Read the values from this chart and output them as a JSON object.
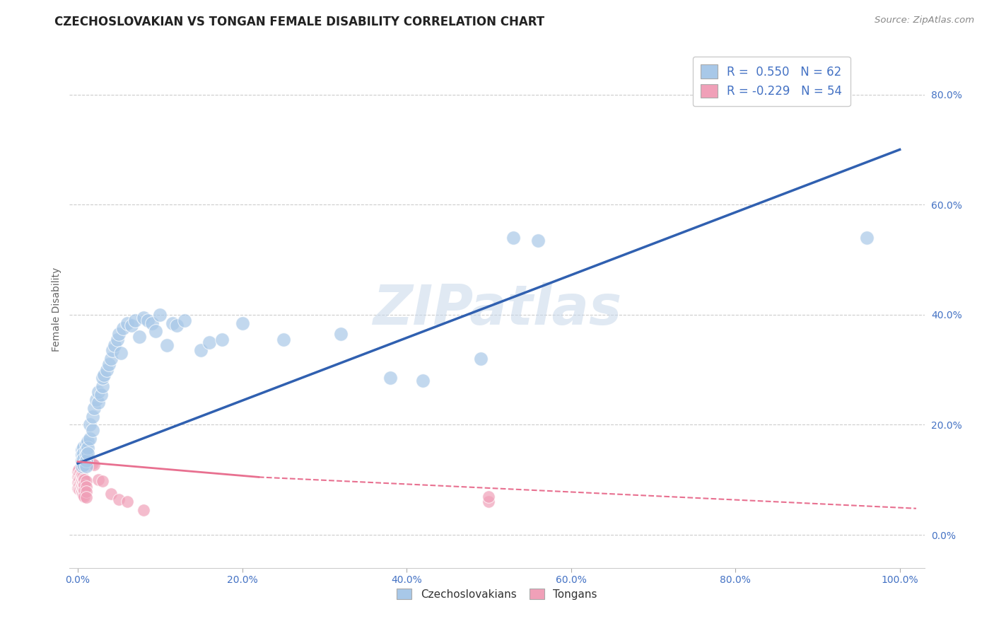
{
  "title": "CZECHOSLOVAKIAN VS TONGAN FEMALE DISABILITY CORRELATION CHART",
  "source": "Source: ZipAtlas.com",
  "ylabel": "Female Disability",
  "xlim": [
    0.0,
    1.0
  ],
  "ylim": [
    -0.05,
    0.88
  ],
  "r_czech": 0.55,
  "n_czech": 62,
  "r_tongan": -0.229,
  "n_tongan": 54,
  "czech_color": "#a8c8e8",
  "tongan_color": "#f0a0b8",
  "czech_line_color": "#3060b0",
  "tongan_line_color": "#e87090",
  "background_color": "#ffffff",
  "czech_scatter": [
    [
      0.005,
      0.155
    ],
    [
      0.005,
      0.145
    ],
    [
      0.005,
      0.135
    ],
    [
      0.005,
      0.125
    ],
    [
      0.007,
      0.16
    ],
    [
      0.007,
      0.148
    ],
    [
      0.007,
      0.138
    ],
    [
      0.007,
      0.128
    ],
    [
      0.01,
      0.165
    ],
    [
      0.01,
      0.155
    ],
    [
      0.01,
      0.145
    ],
    [
      0.01,
      0.135
    ],
    [
      0.01,
      0.125
    ],
    [
      0.012,
      0.17
    ],
    [
      0.012,
      0.158
    ],
    [
      0.012,
      0.148
    ],
    [
      0.015,
      0.175
    ],
    [
      0.015,
      0.2
    ],
    [
      0.018,
      0.19
    ],
    [
      0.018,
      0.215
    ],
    [
      0.02,
      0.23
    ],
    [
      0.022,
      0.245
    ],
    [
      0.025,
      0.24
    ],
    [
      0.025,
      0.26
    ],
    [
      0.028,
      0.255
    ],
    [
      0.03,
      0.27
    ],
    [
      0.03,
      0.285
    ],
    [
      0.032,
      0.29
    ],
    [
      0.035,
      0.3
    ],
    [
      0.038,
      0.31
    ],
    [
      0.04,
      0.32
    ],
    [
      0.042,
      0.335
    ],
    [
      0.045,
      0.345
    ],
    [
      0.048,
      0.355
    ],
    [
      0.05,
      0.365
    ],
    [
      0.052,
      0.33
    ],
    [
      0.055,
      0.375
    ],
    [
      0.06,
      0.385
    ],
    [
      0.065,
      0.38
    ],
    [
      0.07,
      0.39
    ],
    [
      0.075,
      0.36
    ],
    [
      0.08,
      0.395
    ],
    [
      0.085,
      0.39
    ],
    [
      0.09,
      0.385
    ],
    [
      0.095,
      0.37
    ],
    [
      0.1,
      0.4
    ],
    [
      0.108,
      0.345
    ],
    [
      0.115,
      0.385
    ],
    [
      0.12,
      0.38
    ],
    [
      0.13,
      0.39
    ],
    [
      0.15,
      0.335
    ],
    [
      0.16,
      0.35
    ],
    [
      0.175,
      0.355
    ],
    [
      0.2,
      0.385
    ],
    [
      0.25,
      0.355
    ],
    [
      0.32,
      0.365
    ],
    [
      0.38,
      0.285
    ],
    [
      0.42,
      0.28
    ],
    [
      0.49,
      0.32
    ],
    [
      0.53,
      0.54
    ],
    [
      0.56,
      0.535
    ],
    [
      0.96,
      0.54
    ]
  ],
  "tongan_scatter": [
    [
      0.0,
      0.115
    ],
    [
      0.0,
      0.105
    ],
    [
      0.0,
      0.095
    ],
    [
      0.0,
      0.085
    ],
    [
      0.001,
      0.118
    ],
    [
      0.001,
      0.108
    ],
    [
      0.001,
      0.098
    ],
    [
      0.001,
      0.088
    ],
    [
      0.002,
      0.112
    ],
    [
      0.002,
      0.102
    ],
    [
      0.002,
      0.092
    ],
    [
      0.002,
      0.082
    ],
    [
      0.003,
      0.115
    ],
    [
      0.003,
      0.105
    ],
    [
      0.003,
      0.095
    ],
    [
      0.003,
      0.085
    ],
    [
      0.004,
      0.11
    ],
    [
      0.004,
      0.1
    ],
    [
      0.004,
      0.09
    ],
    [
      0.004,
      0.08
    ],
    [
      0.005,
      0.108
    ],
    [
      0.005,
      0.098
    ],
    [
      0.005,
      0.088
    ],
    [
      0.005,
      0.078
    ],
    [
      0.006,
      0.105
    ],
    [
      0.006,
      0.095
    ],
    [
      0.006,
      0.085
    ],
    [
      0.006,
      0.075
    ],
    [
      0.007,
      0.102
    ],
    [
      0.007,
      0.092
    ],
    [
      0.007,
      0.082
    ],
    [
      0.007,
      0.072
    ],
    [
      0.008,
      0.1
    ],
    [
      0.008,
      0.09
    ],
    [
      0.008,
      0.08
    ],
    [
      0.008,
      0.07
    ],
    [
      0.01,
      0.098
    ],
    [
      0.01,
      0.088
    ],
    [
      0.01,
      0.078
    ],
    [
      0.01,
      0.068
    ],
    [
      0.012,
      0.138
    ],
    [
      0.012,
      0.128
    ],
    [
      0.014,
      0.135
    ],
    [
      0.016,
      0.132
    ],
    [
      0.018,
      0.13
    ],
    [
      0.02,
      0.128
    ],
    [
      0.025,
      0.1
    ],
    [
      0.03,
      0.098
    ],
    [
      0.04,
      0.075
    ],
    [
      0.05,
      0.065
    ],
    [
      0.06,
      0.06
    ],
    [
      0.08,
      0.045
    ],
    [
      0.5,
      0.06
    ],
    [
      0.5,
      0.07
    ]
  ]
}
